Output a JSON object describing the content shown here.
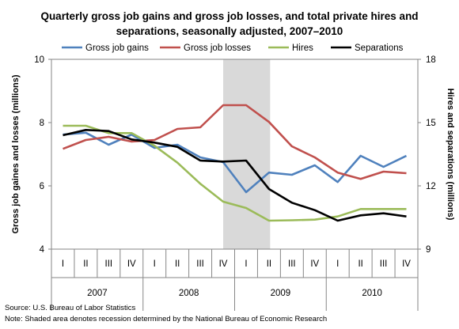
{
  "chart_data": {
    "type": "line",
    "title": [
      "Quarterly gross job gains and gross job losses, and total private hires and",
      "separations, seasonally adjusted, 2007–2010"
    ],
    "quarters": [
      "I",
      "II",
      "III",
      "IV",
      "I",
      "II",
      "III",
      "IV",
      "I",
      "II",
      "III",
      "IV",
      "I",
      "II",
      "III",
      "IV"
    ],
    "years": [
      "2007",
      "2008",
      "2009",
      "2010"
    ],
    "ylabel_left": "Gross job gaines and losses (millions)",
    "ylabel_right": "Hires and separations (millions)",
    "ylim_left": [
      4,
      10
    ],
    "yticks_left": [
      "4",
      "6",
      "8",
      "10"
    ],
    "ylim_right": [
      9,
      18
    ],
    "yticks_right": [
      "9",
      "12",
      "15",
      "18"
    ],
    "recession_label": "shaded 2008 Q4 – 2009 Q2",
    "series": [
      {
        "name": "Gross job gains",
        "axis": "left",
        "color": "#4f81bd",
        "values": [
          7.62,
          7.68,
          7.3,
          7.62,
          7.2,
          7.3,
          6.9,
          6.75,
          5.8,
          6.42,
          6.35,
          6.65,
          6.12,
          6.95,
          6.6,
          6.95
        ]
      },
      {
        "name": "Gross job losses",
        "axis": "left",
        "color": "#c0504d",
        "values": [
          7.17,
          7.45,
          7.55,
          7.4,
          7.45,
          7.8,
          7.85,
          8.55,
          8.55,
          8.02,
          7.25,
          6.9,
          6.42,
          6.22,
          6.45,
          6.4
        ]
      },
      {
        "name": "Hires",
        "axis": "right",
        "color": "#9bbb59",
        "values": [
          14.85,
          14.85,
          14.5,
          14.5,
          13.9,
          13.1,
          12.1,
          11.25,
          10.95,
          10.35,
          10.37,
          10.4,
          10.55,
          10.9,
          10.9,
          10.9
        ]
      },
      {
        "name": "Separations",
        "axis": "right",
        "color": "#000000",
        "values": [
          14.4,
          14.65,
          14.6,
          14.2,
          14.05,
          13.85,
          13.2,
          13.15,
          13.2,
          11.85,
          11.2,
          10.85,
          10.35,
          10.6,
          10.7,
          10.55
        ]
      }
    ]
  },
  "footer": {
    "source": "Source: U.S. Bureau of Labor Statistics",
    "note": "Note: Shaded area denotes recession determined by the National Bureau of Economic Research"
  }
}
